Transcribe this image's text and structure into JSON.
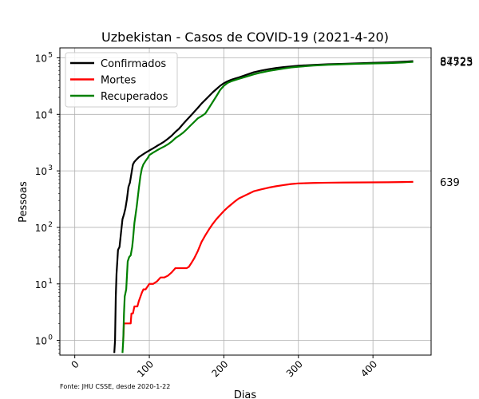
{
  "chart_data": {
    "type": "line",
    "title": "Uzbekistan - Casos de COVID-19 (2021-4-20)",
    "xlabel": "Dias",
    "ylabel": "Pessoas",
    "y_scale": "log",
    "xlim": [
      -20,
      478
    ],
    "ylim": [
      0.55,
      150000
    ],
    "x_ticks": [
      0,
      100,
      200,
      300,
      400
    ],
    "x_tick_labels": [
      "0",
      "100",
      "200",
      "300",
      "400"
    ],
    "y_ticks": [
      1,
      10,
      100,
      1000,
      10000,
      100000
    ],
    "y_tick_labels": [
      "10",
      "10",
      "10",
      "10",
      "10",
      "10"
    ],
    "y_tick_exponents": [
      "0",
      "1",
      "2",
      "3",
      "4",
      "5"
    ],
    "grid": true,
    "legend_position": "top-left",
    "footnote": "Fonte: JHU CSSE, desde 2020-1-22",
    "end_labels": [
      {
        "text": "87525",
        "y": 87525
      },
      {
        "text": "84723",
        "y": 84723
      },
      {
        "text": "639",
        "y": 639
      }
    ],
    "series": [
      {
        "name": "Confirmados",
        "color": "#000000",
        "x": [
          53,
          54,
          55,
          56,
          58,
          60,
          62,
          64,
          66,
          68,
          70,
          72,
          74,
          76,
          78,
          80,
          83,
          86,
          90,
          95,
          100,
          105,
          110,
          115,
          120,
          125,
          130,
          135,
          140,
          145,
          150,
          155,
          160,
          165,
          170,
          175,
          180,
          185,
          190,
          195,
          200,
          205,
          210,
          215,
          220,
          230,
          240,
          250,
          260,
          270,
          280,
          290,
          300,
          320,
          340,
          360,
          380,
          400,
          420,
          440,
          454
        ],
        "y": [
          0.6,
          1,
          6,
          15,
          40,
          45,
          80,
          140,
          170,
          220,
          320,
          520,
          620,
          900,
          1300,
          1450,
          1600,
          1750,
          1900,
          2100,
          2300,
          2500,
          2750,
          3000,
          3300,
          3700,
          4200,
          4900,
          5600,
          6700,
          7900,
          9300,
          11000,
          13000,
          15500,
          18000,
          21000,
          24500,
          28000,
          32000,
          35500,
          38500,
          41000,
          43000,
          45000,
          50000,
          55500,
          59500,
          63000,
          66000,
          68500,
          70500,
          72500,
          75000,
          77000,
          78500,
          80000,
          81500,
          83000,
          85200,
          87525
        ]
      },
      {
        "name": "Mortes",
        "color": "#ff0000",
        "x": [
          64,
          65,
          66,
          70,
          75,
          76,
          78,
          80,
          84,
          86,
          90,
          92,
          95,
          100,
          105,
          110,
          115,
          120,
          125,
          130,
          135,
          140,
          145,
          150,
          153,
          156,
          160,
          165,
          170,
          175,
          180,
          185,
          190,
          195,
          200,
          205,
          210,
          215,
          220,
          230,
          240,
          250,
          260,
          270,
          280,
          290,
          300,
          320,
          340,
          360,
          380,
          400,
          420,
          440,
          454
        ],
        "y": [
          1,
          1,
          2,
          2,
          2,
          3,
          3,
          4,
          4,
          5,
          7,
          8,
          8,
          10,
          10,
          11,
          13,
          13,
          14,
          16,
          19,
          19,
          19,
          19,
          20,
          23,
          28,
          38,
          55,
          72,
          92,
          115,
          140,
          165,
          195,
          225,
          255,
          290,
          325,
          375,
          435,
          470,
          505,
          535,
          560,
          585,
          600,
          612,
          618,
          621,
          624,
          627,
          630,
          634,
          639
        ]
      },
      {
        "name": "Recuperados",
        "color": "#008000",
        "x": [
          64,
          65,
          66,
          67,
          69,
          71,
          73,
          75,
          77,
          78,
          80,
          83,
          86,
          88,
          90,
          92,
          95,
          98,
          100,
          105,
          110,
          115,
          120,
          125,
          130,
          135,
          140,
          145,
          150,
          155,
          160,
          165,
          170,
          175,
          180,
          185,
          190,
          195,
          200,
          205,
          210,
          215,
          220,
          230,
          240,
          250,
          260,
          270,
          280,
          290,
          300,
          320,
          340,
          360,
          380,
          400,
          420,
          440,
          454
        ],
        "y": [
          0.6,
          1,
          3,
          6,
          8,
          25,
          30,
          32,
          45,
          60,
          120,
          230,
          500,
          800,
          1100,
          1300,
          1500,
          1700,
          1900,
          2100,
          2300,
          2500,
          2700,
          2950,
          3300,
          3800,
          4200,
          4700,
          5400,
          6300,
          7300,
          8500,
          9300,
          10300,
          13000,
          16500,
          21000,
          27000,
          32000,
          36000,
          38500,
          40500,
          42500,
          46500,
          51000,
          55000,
          58500,
          61500,
          64500,
          67500,
          69500,
          73000,
          75500,
          77000,
          78500,
          79500,
          80500,
          82500,
          84723
        ]
      }
    ]
  }
}
